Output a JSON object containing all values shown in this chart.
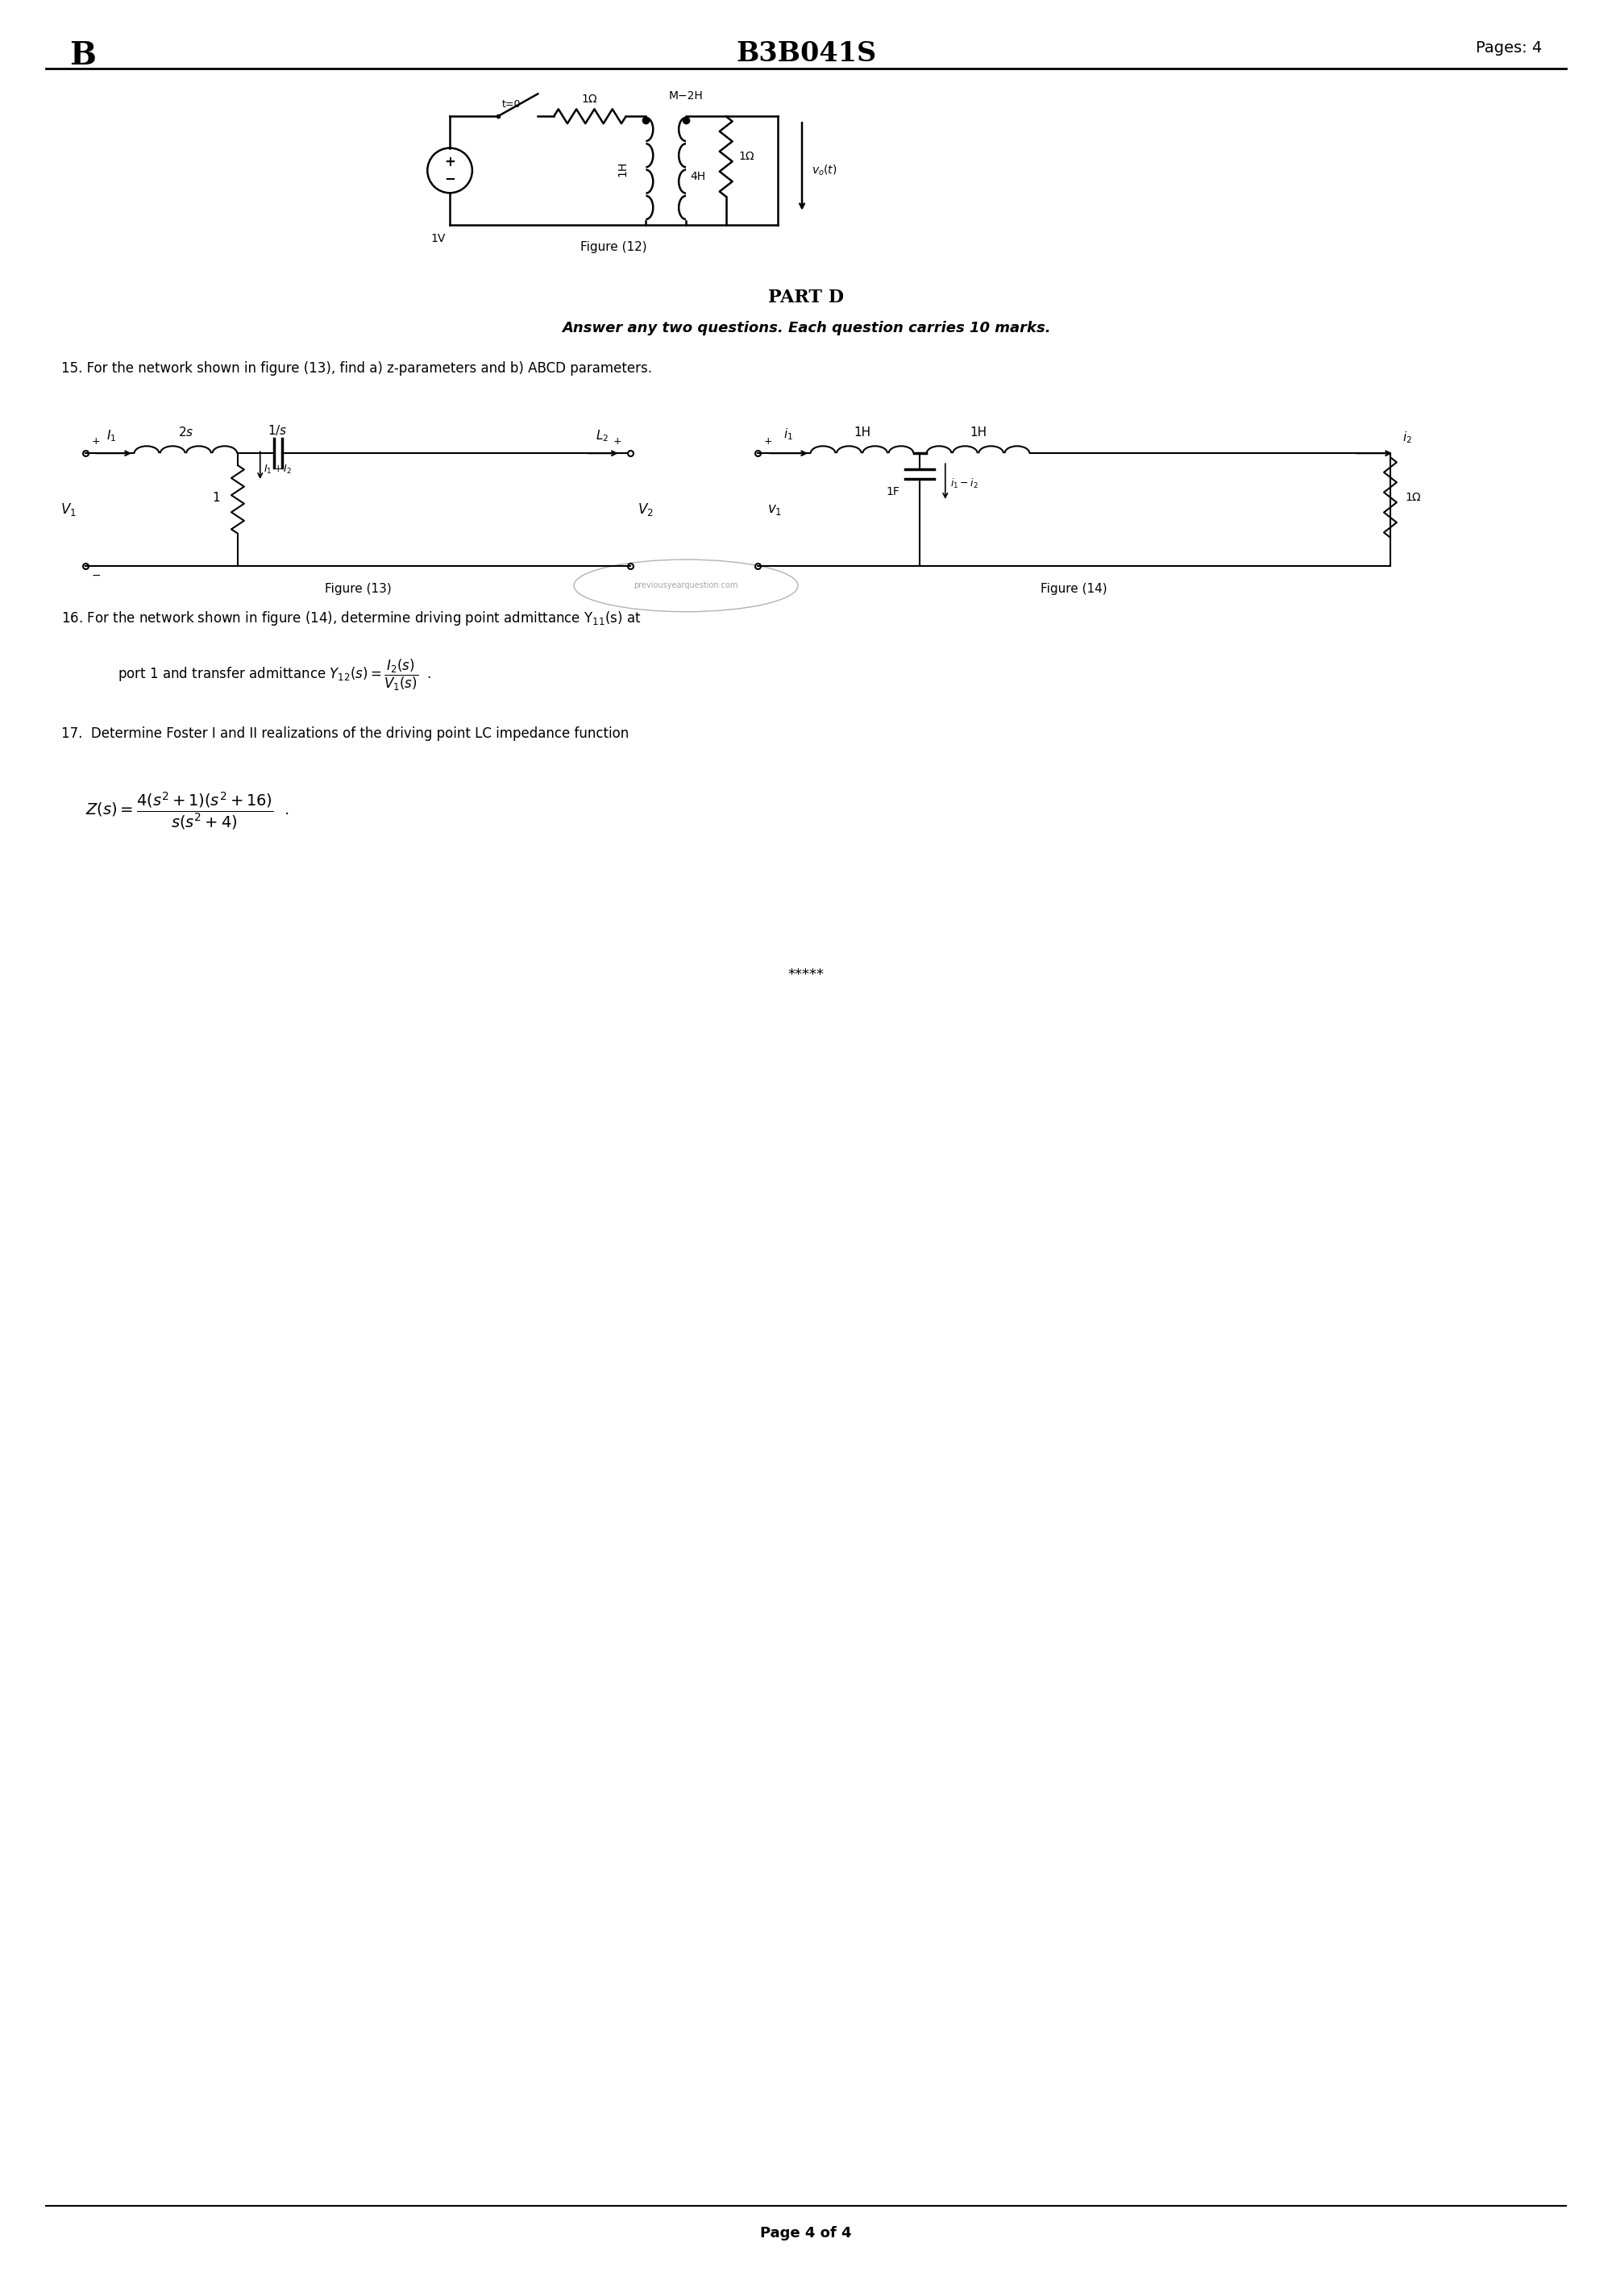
{
  "page_width": 20.0,
  "page_height": 28.28,
  "bg_color": "#ffffff",
  "header_left": "B",
  "header_center": "B3B041S",
  "header_right": "Pages: 4",
  "header_fontsize": 26,
  "part_d_title": "PART D",
  "part_d_subtitle": "Answer any two questions. Each question carries 10 marks.",
  "q15": "15. For the network shown in figure (13), find a) z-parameters and b) ABCD parameters.",
  "q16_line1": "16. For the network shown in figure (14), determine driving point admittance Y",
  "q17_line1": "17.  Determine Foster I and II realizations of the driving point LC impedance function",
  "footer": "Page 4 of 4",
  "fig12_label": "Figure (12)",
  "fig13_label": "Figure (13)",
  "fig14_label": "Figure (14)",
  "stars": "*****"
}
